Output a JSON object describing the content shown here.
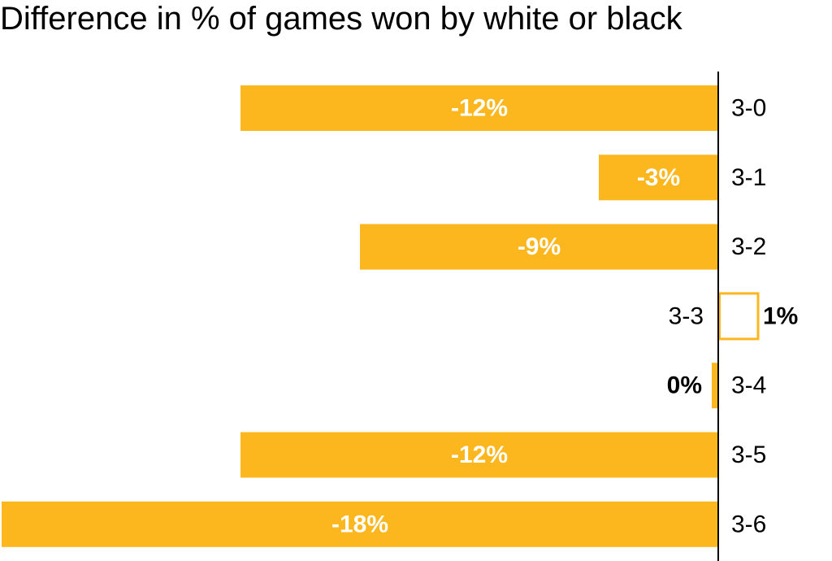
{
  "chart_data": {
    "type": "bar",
    "orientation": "horizontal",
    "title": "Difference in % of games won by white or black",
    "xlabel": "",
    "ylabel": "",
    "categories": [
      "3-0",
      "3-1",
      "3-2",
      "3-3",
      "3-4",
      "3-5",
      "3-6"
    ],
    "values": [
      -12,
      -3,
      -9,
      1,
      0,
      -12,
      -18
    ],
    "value_labels": [
      "-12%",
      "-3%",
      "-9%",
      "1%",
      "0%",
      "-12%",
      "-18%"
    ],
    "xlim": [
      -18,
      1
    ],
    "grid": false,
    "legend": "none",
    "colors": {
      "bar": "#FDB71E",
      "positive_bar_outline": "#FDB71E",
      "axis": "#000000"
    }
  }
}
